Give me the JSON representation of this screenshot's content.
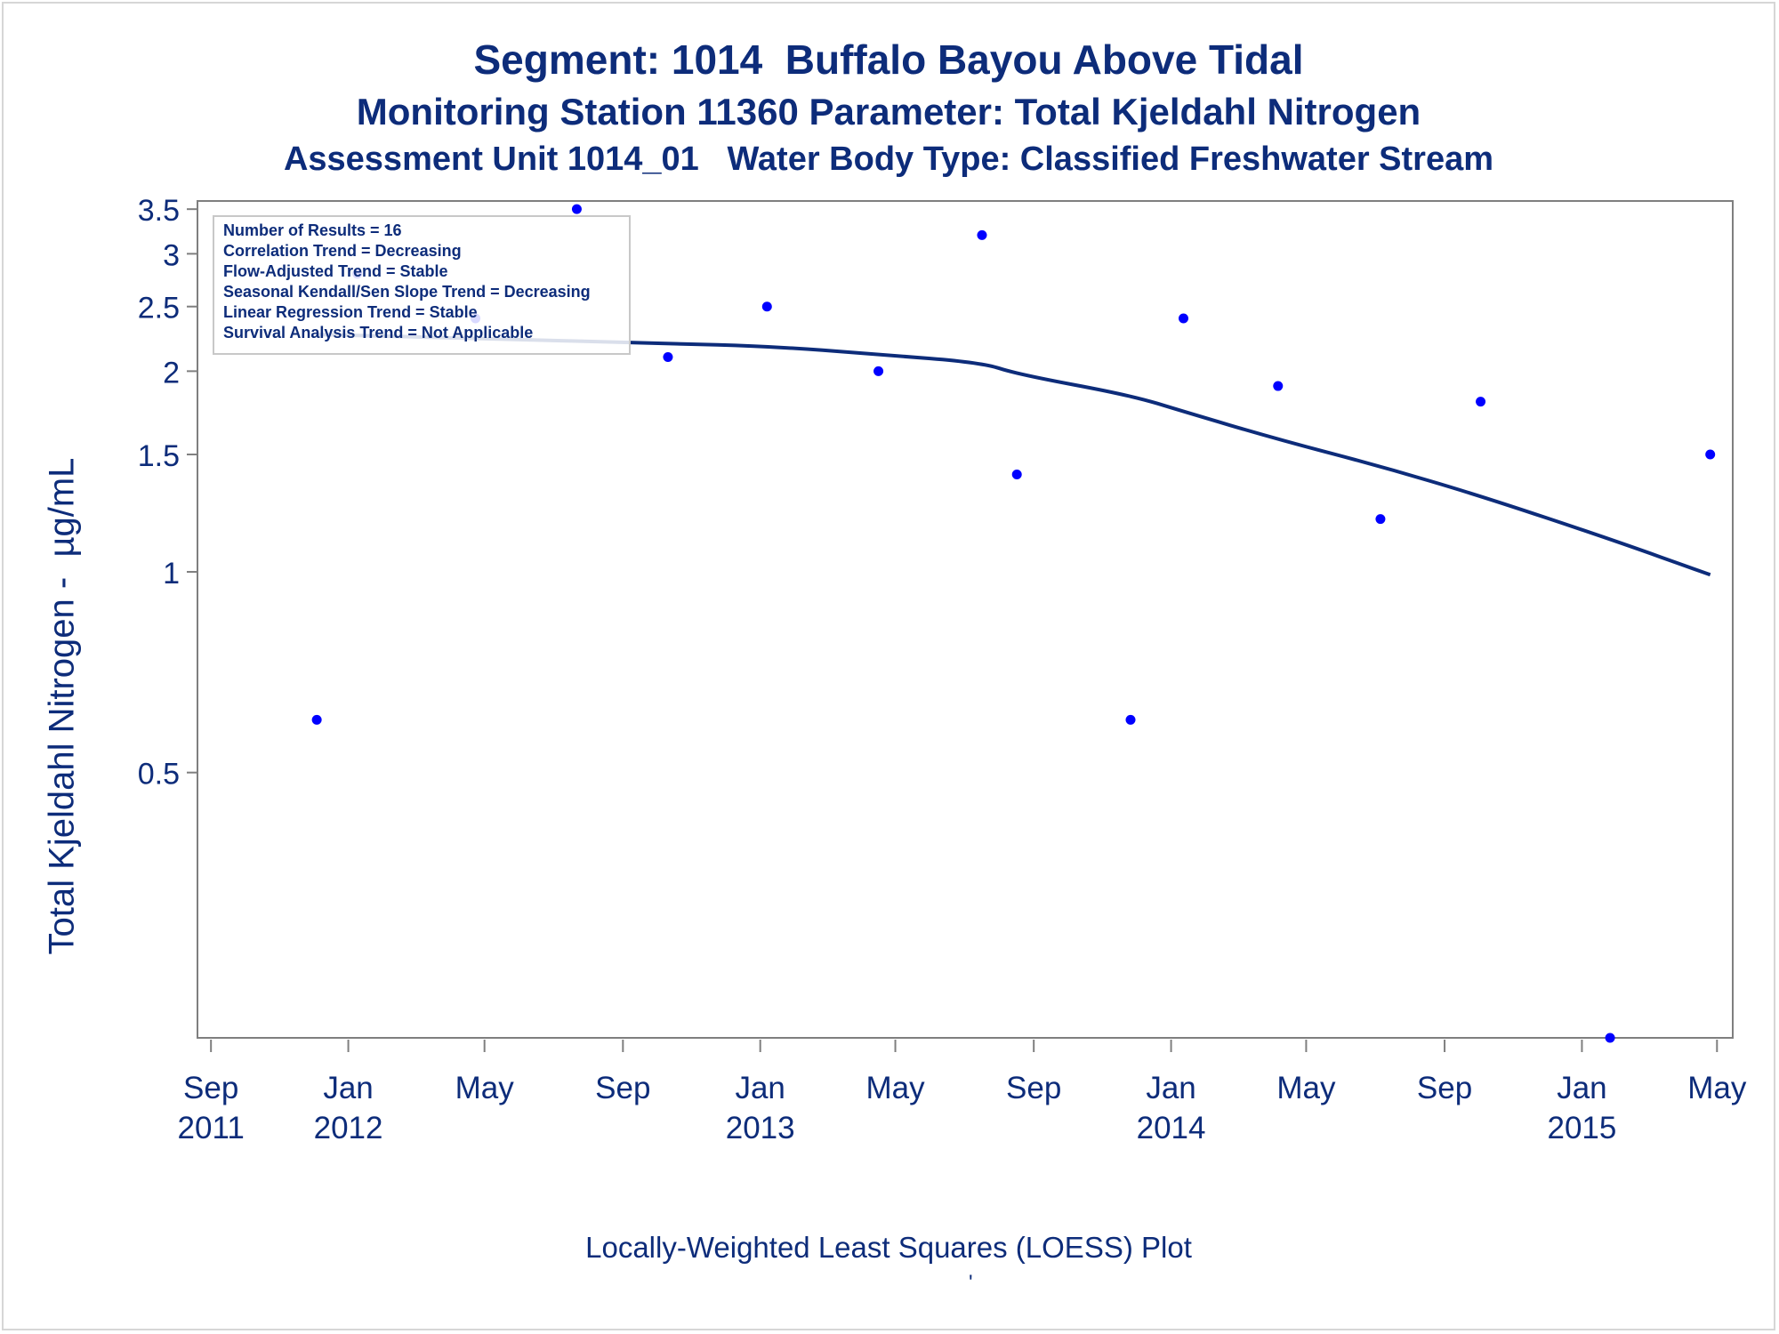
{
  "titles": {
    "line1": "Segment: 1014  Buffalo Bayou Above Tidal",
    "line2": "Monitoring Station 11360 Parameter: Total Kjeldahl Nitrogen",
    "line3": "Assessment Unit 1014_01   Water Body Type: Classified Freshwater Stream"
  },
  "footnote": "Locally-Weighted Least Squares (LOESS) Plot",
  "footnote_mark": "'",
  "stats_box": [
    "Number of Results = 16",
    "Correlation Trend = Decreasing",
    "Flow-Adjusted Trend = Stable",
    "Seasonal Kendall/Sen Slope Trend = Decreasing",
    "Linear Regression Trend = Stable",
    "Survival Analysis Trend = Not Applicable"
  ],
  "colors": {
    "text": "#0d2c7a",
    "points": "#0000ff",
    "loess": "#0d2c7a",
    "axis": "#7f7f7f"
  },
  "chart_data": {
    "type": "scatter",
    "ylabel": "Total Kjeldahl Nitrogen -  µg/mL",
    "xlabel": "",
    "y_scale": "log",
    "ylim": [
      0.2,
      3.6
    ],
    "xlim": [
      "2011-08-20",
      "2015-05-15"
    ],
    "y_ticks": [
      {
        "value": 0.5,
        "label": "0.5"
      },
      {
        "value": 1,
        "label": "1"
      },
      {
        "value": 1.5,
        "label": "1.5"
      },
      {
        "value": 2,
        "label": "2"
      },
      {
        "value": 2.5,
        "label": "2.5"
      },
      {
        "value": 3,
        "label": "3"
      },
      {
        "value": 3.5,
        "label": "3.5"
      }
    ],
    "x_ticks": [
      {
        "date": "2011-09-01",
        "label": [
          "Sep",
          "2011"
        ]
      },
      {
        "date": "2012-01-01",
        "label": [
          "Jan",
          "2012"
        ]
      },
      {
        "date": "2012-05-01",
        "label": [
          "May",
          ""
        ]
      },
      {
        "date": "2012-09-01",
        "label": [
          "Sep",
          ""
        ]
      },
      {
        "date": "2013-01-01",
        "label": [
          "Jan",
          "2013"
        ]
      },
      {
        "date": "2013-05-01",
        "label": [
          "May",
          ""
        ]
      },
      {
        "date": "2013-09-01",
        "label": [
          "Sep",
          ""
        ]
      },
      {
        "date": "2014-01-01",
        "label": [
          "Jan",
          "2014"
        ]
      },
      {
        "date": "2014-05-01",
        "label": [
          "May",
          ""
        ]
      },
      {
        "date": "2014-09-01",
        "label": [
          "Sep",
          ""
        ]
      },
      {
        "date": "2015-01-01",
        "label": [
          "Jan",
          "2015"
        ]
      },
      {
        "date": "2015-05-01",
        "label": [
          "May",
          ""
        ]
      }
    ],
    "series": [
      {
        "kind": "points",
        "x": [
          "2011-12-04",
          "2012-01-09",
          "2012-04-23",
          "2012-07-22",
          "2012-10-11",
          "2013-01-07",
          "2013-04-16",
          "2013-07-17",
          "2013-08-17",
          "2013-11-26",
          "2014-01-12",
          "2014-04-06",
          "2014-07-06",
          "2014-10-03",
          "2015-01-26",
          "2015-04-25"
        ],
        "y": [
          0.6,
          2.8,
          2.4,
          3.5,
          2.1,
          2.5,
          2.0,
          3.2,
          1.4,
          0.6,
          2.4,
          1.9,
          1.2,
          1.8,
          0.2,
          1.5
        ]
      },
      {
        "kind": "loess-line",
        "x": [
          "2011-12-04",
          "2012-04-23",
          "2012-10-11",
          "2013-01-07",
          "2013-04-16",
          "2013-07-17",
          "2013-08-17",
          "2013-11-26",
          "2014-01-12",
          "2014-04-06",
          "2014-07-06",
          "2014-10-03",
          "2015-01-26",
          "2015-04-25"
        ],
        "y": [
          2.27,
          2.24,
          2.2,
          2.18,
          2.12,
          2.06,
          1.98,
          1.84,
          1.74,
          1.58,
          1.44,
          1.3,
          1.12,
          0.99
        ]
      }
    ]
  }
}
